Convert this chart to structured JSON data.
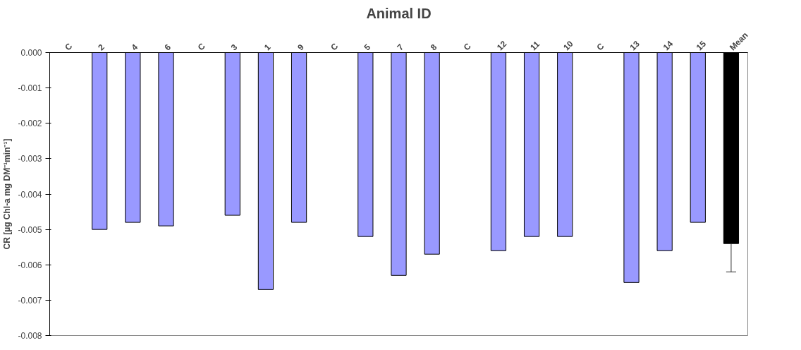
{
  "chart_data": {
    "type": "bar",
    "title": "Animal ID",
    "ylabel": "CR [µg Chl-a mg DM⁻¹min⁻¹]",
    "categories": [
      "C",
      "2",
      "4",
      "6",
      "C",
      "3",
      "1",
      "9",
      "C",
      "5",
      "7",
      "8",
      "C",
      "12",
      "11",
      "10",
      "C",
      "13",
      "14",
      "15",
      "Mean"
    ],
    "values": [
      null,
      -0.005,
      -0.0048,
      -0.0049,
      null,
      -0.0046,
      -0.0067,
      -0.0048,
      null,
      -0.0052,
      -0.0063,
      -0.0057,
      null,
      -0.0056,
      -0.0052,
      -0.0052,
      null,
      -0.0065,
      -0.0056,
      -0.0048,
      -0.0054
    ],
    "colors": [
      "#9999ff",
      "#9999ff",
      "#9999ff",
      "#9999ff",
      "#9999ff",
      "#9999ff",
      "#9999ff",
      "#9999ff",
      "#9999ff",
      "#9999ff",
      "#9999ff",
      "#9999ff",
      "#9999ff",
      "#9999ff",
      "#9999ff",
      "#9999ff",
      "#9999ff",
      "#9999ff",
      "#9999ff",
      "#9999ff",
      "#000000"
    ],
    "errors": [
      null,
      null,
      null,
      null,
      null,
      null,
      null,
      null,
      null,
      null,
      null,
      null,
      null,
      null,
      null,
      null,
      null,
      null,
      null,
      null,
      [
        -0.0062,
        -0.0054
      ]
    ],
    "ylim": [
      -0.008,
      0
    ],
    "yticks": [
      {
        "value": 0,
        "label": "0.000"
      },
      -0.001,
      -0.002,
      -0.003,
      -0.004,
      -0.005,
      -0.006,
      -0.007,
      -0.008
    ],
    "grid": false
  }
}
